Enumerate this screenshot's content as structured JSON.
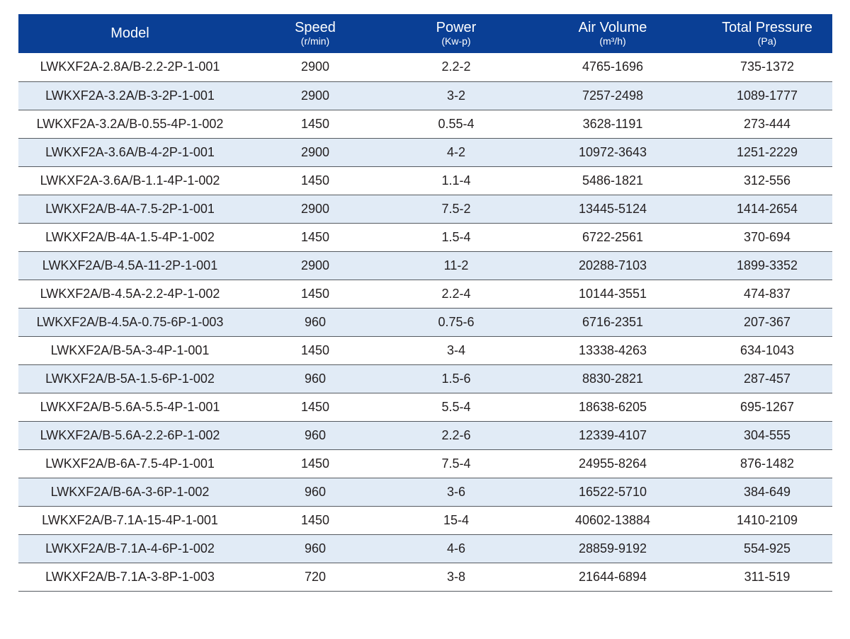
{
  "headers": [
    {
      "title": "Model",
      "unit": ""
    },
    {
      "title": "Speed",
      "unit": "(r/min)"
    },
    {
      "title": "Power",
      "unit": "(Kw-p)"
    },
    {
      "title": "Air Volume",
      "unit": "(m³/h)"
    },
    {
      "title": "Total Pressure",
      "unit": "(Pa)"
    }
  ],
  "rows": [
    {
      "model": "LWKXF2A-2.8A/B-2.2-2P-1-001",
      "speed": "2900",
      "power": "2.2-2",
      "air": "4765-1696",
      "pressure": "735-1372"
    },
    {
      "model": "LWKXF2A-3.2A/B-3-2P-1-001",
      "speed": "2900",
      "power": "3-2",
      "air": "7257-2498",
      "pressure": "1089-1777"
    },
    {
      "model": "LWKXF2A-3.2A/B-0.55-4P-1-002",
      "speed": "1450",
      "power": "0.55-4",
      "air": "3628-1191",
      "pressure": "273-444"
    },
    {
      "model": "LWKXF2A-3.6A/B-4-2P-1-001",
      "speed": "2900",
      "power": "4-2",
      "air": "10972-3643",
      "pressure": "1251-2229"
    },
    {
      "model": "LWKXF2A-3.6A/B-1.1-4P-1-002",
      "speed": "1450",
      "power": "1.1-4",
      "air": "5486-1821",
      "pressure": "312-556"
    },
    {
      "model": "LWKXF2A/B-4A-7.5-2P-1-001",
      "speed": "2900",
      "power": "7.5-2",
      "air": "13445-5124",
      "pressure": "1414-2654"
    },
    {
      "model": "LWKXF2A/B-4A-1.5-4P-1-002",
      "speed": "1450",
      "power": "1.5-4",
      "air": "6722-2561",
      "pressure": "370-694"
    },
    {
      "model": "LWKXF2A/B-4.5A-11-2P-1-001",
      "speed": "2900",
      "power": "11-2",
      "air": "20288-7103",
      "pressure": "1899-3352"
    },
    {
      "model": "LWKXF2A/B-4.5A-2.2-4P-1-002",
      "speed": "1450",
      "power": "2.2-4",
      "air": "10144-3551",
      "pressure": "474-837"
    },
    {
      "model": "LWKXF2A/B-4.5A-0.75-6P-1-003",
      "speed": "960",
      "power": "0.75-6",
      "air": "6716-2351",
      "pressure": "207-367"
    },
    {
      "model": "LWKXF2A/B-5A-3-4P-1-001",
      "speed": "1450",
      "power": "3-4",
      "air": "13338-4263",
      "pressure": "634-1043"
    },
    {
      "model": "LWKXF2A/B-5A-1.5-6P-1-002",
      "speed": "960",
      "power": "1.5-6",
      "air": "8830-2821",
      "pressure": "287-457"
    },
    {
      "model": "LWKXF2A/B-5.6A-5.5-4P-1-001",
      "speed": "1450",
      "power": "5.5-4",
      "air": "18638-6205",
      "pressure": "695-1267"
    },
    {
      "model": "LWKXF2A/B-5.6A-2.2-6P-1-002",
      "speed": "960",
      "power": "2.2-6",
      "air": "12339-4107",
      "pressure": "304-555"
    },
    {
      "model": "LWKXF2A/B-6A-7.5-4P-1-001",
      "speed": "1450",
      "power": "7.5-4",
      "air": "24955-8264",
      "pressure": "876-1482"
    },
    {
      "model": "LWKXF2A/B-6A-3-6P-1-002",
      "speed": "960",
      "power": "3-6",
      "air": "16522-5710",
      "pressure": "384-649"
    },
    {
      "model": "LWKXF2A/B-7.1A-15-4P-1-001",
      "speed": "1450",
      "power": "15-4",
      "air": "40602-13884",
      "pressure": "1410-2109"
    },
    {
      "model": "LWKXF2A/B-7.1A-4-6P-1-002",
      "speed": "960",
      "power": "4-6",
      "air": "28859-9192",
      "pressure": "554-925"
    },
    {
      "model": "LWKXF2A/B-7.1A-3-8P-1-003",
      "speed": "720",
      "power": "3-8",
      "air": "21644-6894",
      "pressure": "311-519"
    }
  ],
  "colors": {
    "header_bg": "#0a3f95",
    "header_text": "#ffffff",
    "stripe_bg": "#e1ebf6",
    "row_divider": "#555a60"
  }
}
